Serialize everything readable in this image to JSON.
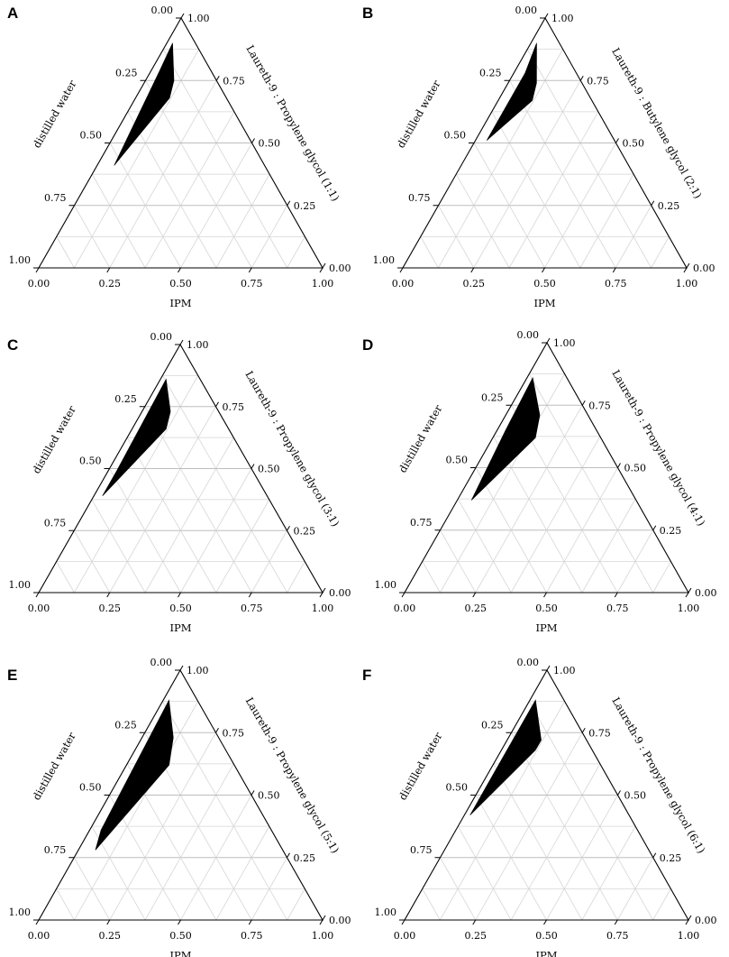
{
  "chart_data": [
    {
      "panel": "A",
      "type": "ternary",
      "axes": {
        "bottom": "IPM",
        "left": "distilled water",
        "right": "Laureth-9 : Propylene glycol (1:1)"
      },
      "ticks": [
        "0.00",
        "0.25",
        "0.50",
        "0.75",
        "1.00"
      ],
      "grid_step": 0.125,
      "region": [
        {
          "ipm": 0.02,
          "water": 0.08,
          "surf": 0.9
        },
        {
          "ipm": 0.1,
          "water": 0.15,
          "surf": 0.75
        },
        {
          "ipm": 0.12,
          "water": 0.2,
          "surf": 0.68
        },
        {
          "ipm": 0.06,
          "water": 0.53,
          "surf": 0.41
        },
        {
          "ipm": 0.03,
          "water": 0.18,
          "surf": 0.79
        }
      ]
    },
    {
      "panel": "B",
      "type": "ternary",
      "axes": {
        "bottom": "IPM",
        "left": "distilled water",
        "right": "Laureth-9 : Butylene glycol (2:1)"
      },
      "ticks": [
        "0.00",
        "0.25",
        "0.50",
        "0.75",
        "1.00"
      ],
      "grid_step": 0.125,
      "region": [
        {
          "ipm": 0.02,
          "water": 0.08,
          "surf": 0.9
        },
        {
          "ipm": 0.1,
          "water": 0.16,
          "surf": 0.74
        },
        {
          "ipm": 0.12,
          "water": 0.21,
          "surf": 0.67
        },
        {
          "ipm": 0.04,
          "water": 0.45,
          "surf": 0.51
        },
        {
          "ipm": 0.04,
          "water": 0.18,
          "surf": 0.78
        }
      ]
    },
    {
      "panel": "C",
      "type": "ternary",
      "axes": {
        "bottom": "IPM",
        "left": "distilled water",
        "right": "Laureth-9 : Propylene glycol (3:1)"
      },
      "ticks": [
        "0.00",
        "0.25",
        "0.50",
        "0.75",
        "1.00"
      ],
      "grid_step": 0.125,
      "region": [
        {
          "ipm": 0.02,
          "water": 0.12,
          "surf": 0.86
        },
        {
          "ipm": 0.1,
          "water": 0.17,
          "surf": 0.73
        },
        {
          "ipm": 0.12,
          "water": 0.22,
          "surf": 0.66
        },
        {
          "ipm": 0.03,
          "water": 0.58,
          "surf": 0.39
        },
        {
          "ipm": 0.03,
          "water": 0.48,
          "surf": 0.49
        }
      ]
    },
    {
      "panel": "D",
      "type": "ternary",
      "axes": {
        "bottom": "IPM",
        "left": "distilled water",
        "right": "Laureth-9 : Propylene glycol (4:1)"
      },
      "ticks": [
        "0.00",
        "0.25",
        "0.50",
        "0.75",
        "1.00"
      ],
      "grid_step": 0.125,
      "region": [
        {
          "ipm": 0.02,
          "water": 0.12,
          "surf": 0.86
        },
        {
          "ipm": 0.12,
          "water": 0.17,
          "surf": 0.71
        },
        {
          "ipm": 0.15,
          "water": 0.23,
          "surf": 0.62
        },
        {
          "ipm": 0.05,
          "water": 0.58,
          "surf": 0.37
        },
        {
          "ipm": 0.03,
          "water": 0.32,
          "surf": 0.65
        }
      ]
    },
    {
      "panel": "E",
      "type": "ternary",
      "axes": {
        "bottom": "IPM",
        "left": "distilled water",
        "right": "Laureth-9 : Propylene glycol (5:1)"
      },
      "ticks": [
        "0.00",
        "0.25",
        "0.50",
        "0.75",
        "1.00"
      ],
      "grid_step": 0.125,
      "region": [
        {
          "ipm": 0.02,
          "water": 0.1,
          "surf": 0.88
        },
        {
          "ipm": 0.11,
          "water": 0.16,
          "surf": 0.73
        },
        {
          "ipm": 0.15,
          "water": 0.23,
          "surf": 0.62
        },
        {
          "ipm": 0.06,
          "water": 0.66,
          "surf": 0.28
        },
        {
          "ipm": 0.04,
          "water": 0.6,
          "surf": 0.36
        }
      ]
    },
    {
      "panel": "F",
      "type": "ternary",
      "axes": {
        "bottom": "IPM",
        "left": "distilled water",
        "right": "Laureth-9 : Propylene glycol (6:1)"
      },
      "ticks": [
        "0.00",
        "0.25",
        "0.50",
        "0.75",
        "1.00"
      ],
      "grid_step": 0.125,
      "region": [
        {
          "ipm": 0.02,
          "water": 0.1,
          "surf": 0.88
        },
        {
          "ipm": 0.12,
          "water": 0.16,
          "surf": 0.72
        },
        {
          "ipm": 0.12,
          "water": 0.2,
          "surf": 0.68
        },
        {
          "ipm": 0.02,
          "water": 0.56,
          "surf": 0.42
        },
        {
          "ipm": 0.02,
          "water": 0.4,
          "surf": 0.58
        }
      ]
    }
  ]
}
